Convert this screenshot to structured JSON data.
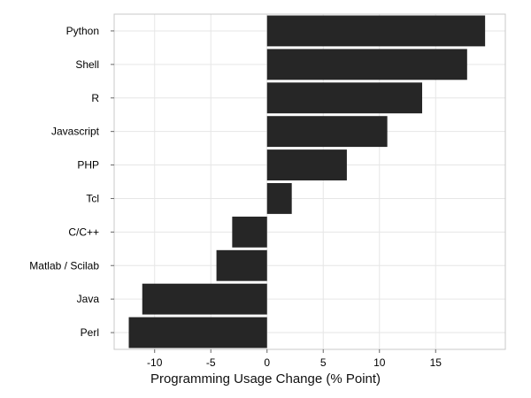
{
  "chart_data": {
    "type": "bar",
    "orientation": "horizontal",
    "title": "",
    "xlabel": "Programming Usage Change (% Point)",
    "ylabel": "",
    "categories": [
      "Python",
      "Shell",
      "R",
      "Javascript",
      "PHP",
      "Tcl",
      "C/C++",
      "Matlab / Scilab",
      "Java",
      "Perl"
    ],
    "values": [
      19.4,
      17.8,
      13.8,
      10.7,
      7.1,
      2.2,
      -3.1,
      -4.5,
      -11.1,
      -12.3
    ],
    "xlim": [
      -13.6,
      21.2
    ],
    "xticks": [
      -10,
      -5,
      0,
      5,
      10,
      15
    ],
    "xtick_labels": [
      "-10",
      "-5",
      "0",
      "5",
      "10",
      "15"
    ],
    "grid": true,
    "bar_color": "#262626",
    "grid_color": "#e6e6e6",
    "frame_color": "#c8c8c8"
  }
}
